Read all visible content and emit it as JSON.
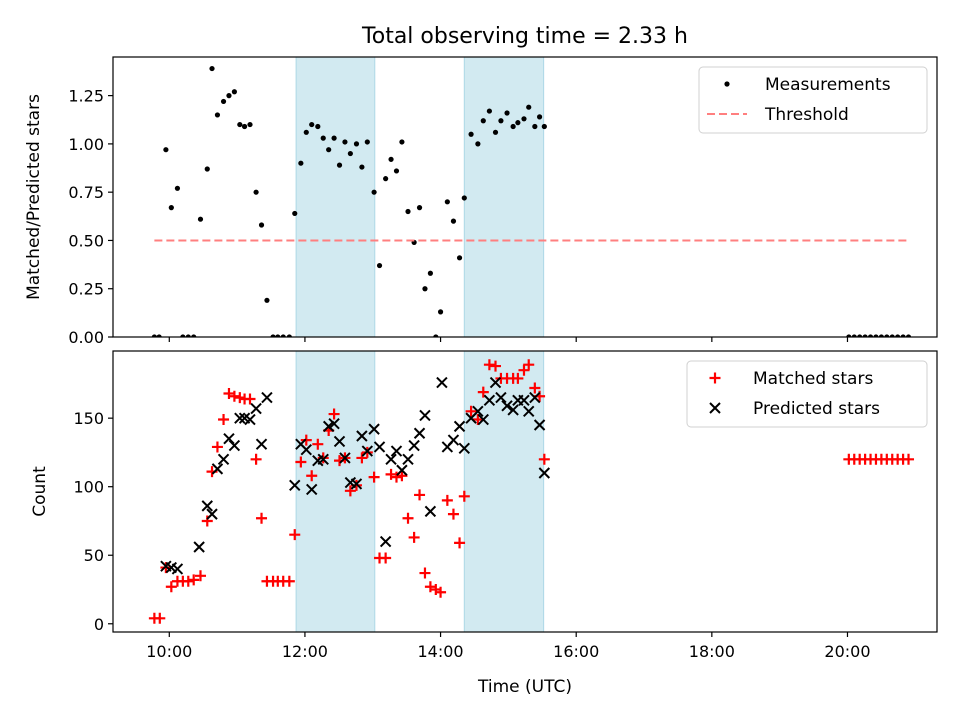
{
  "chart_data": {
    "title": "Total observing time = 2.33 h",
    "type": "scatter",
    "shaded_intervals": [
      [
        11.87,
        13.03
      ],
      [
        14.35,
        15.52
      ]
    ],
    "shade_color": "#add8e6",
    "xlabel": "Time (UTC)",
    "xlim": [
      9.17,
      21.32
    ],
    "xticks": [
      10,
      12,
      14,
      16,
      18,
      20
    ],
    "xtick_labels": [
      "10:00",
      "12:00",
      "14:00",
      "16:00",
      "18:00",
      "20:00"
    ],
    "grid": false,
    "panels": [
      {
        "ylabel": "Matched/Predicted stars",
        "ylim": [
          0,
          1.45
        ],
        "yticks": [
          0.0,
          0.25,
          0.5,
          0.75,
          1.0,
          1.25
        ],
        "ytick_labels": [
          "0.00",
          "0.25",
          "0.50",
          "0.75",
          "1.00",
          "1.25"
        ],
        "legend_position": "top-right",
        "series": [
          {
            "name": "Measurements",
            "kind": "dot",
            "color": "#000000",
            "points": [
              [
                9.78,
                0.0
              ],
              [
                9.85,
                0.0
              ],
              [
                9.95,
                0.97
              ],
              [
                10.03,
                0.67
              ],
              [
                10.12,
                0.77
              ],
              [
                10.2,
                0.0
              ],
              [
                10.28,
                0.0
              ],
              [
                10.36,
                0.0
              ],
              [
                10.46,
                0.61
              ],
              [
                10.56,
                0.87
              ],
              [
                10.63,
                1.39
              ],
              [
                10.71,
                1.15
              ],
              [
                10.8,
                1.22
              ],
              [
                10.88,
                1.25
              ],
              [
                10.96,
                1.27
              ],
              [
                11.04,
                1.1
              ],
              [
                11.11,
                1.09
              ],
              [
                11.19,
                1.1
              ],
              [
                11.28,
                0.75
              ],
              [
                11.36,
                0.58
              ],
              [
                11.44,
                0.19
              ],
              [
                11.53,
                0.0
              ],
              [
                11.6,
                0.0
              ],
              [
                11.68,
                0.0
              ],
              [
                11.77,
                0.0
              ],
              [
                11.85,
                0.64
              ],
              [
                11.94,
                0.9
              ],
              [
                12.02,
                1.06
              ],
              [
                12.1,
                1.1
              ],
              [
                12.19,
                1.09
              ],
              [
                12.27,
                1.03
              ],
              [
                12.35,
                0.97
              ],
              [
                12.43,
                1.03
              ],
              [
                12.51,
                0.89
              ],
              [
                12.59,
                1.01
              ],
              [
                12.67,
                0.95
              ],
              [
                12.76,
                1.0
              ],
              [
                12.84,
                0.88
              ],
              [
                12.92,
                1.01
              ],
              [
                13.02,
                0.75
              ],
              [
                13.1,
                0.37
              ],
              [
                13.19,
                0.82
              ],
              [
                13.27,
                0.92
              ],
              [
                13.35,
                0.86
              ],
              [
                13.43,
                1.01
              ],
              [
                13.52,
                0.65
              ],
              [
                13.61,
                0.49
              ],
              [
                13.69,
                0.67
              ],
              [
                13.77,
                0.25
              ],
              [
                13.85,
                0.33
              ],
              [
                13.93,
                0.0
              ],
              [
                14.0,
                0.13
              ],
              [
                14.1,
                0.7
              ],
              [
                14.19,
                0.6
              ],
              [
                14.28,
                0.41
              ],
              [
                14.35,
                0.72
              ],
              [
                14.45,
                1.05
              ],
              [
                14.55,
                1.0
              ],
              [
                14.63,
                1.12
              ],
              [
                14.72,
                1.17
              ],
              [
                14.81,
                1.06
              ],
              [
                14.89,
                1.12
              ],
              [
                14.98,
                1.16
              ],
              [
                15.07,
                1.09
              ],
              [
                15.14,
                1.11
              ],
              [
                15.23,
                1.13
              ],
              [
                15.3,
                1.19
              ],
              [
                15.39,
                1.09
              ],
              [
                15.46,
                1.14
              ],
              [
                15.53,
                1.09
              ],
              [
                20.02,
                0.0
              ],
              [
                20.1,
                0.0
              ],
              [
                20.18,
                0.0
              ],
              [
                20.26,
                0.0
              ],
              [
                20.34,
                0.0
              ],
              [
                20.42,
                0.0
              ],
              [
                20.5,
                0.0
              ],
              [
                20.58,
                0.0
              ],
              [
                20.66,
                0.0
              ],
              [
                20.74,
                0.0
              ],
              [
                20.82,
                0.0
              ],
              [
                20.9,
                0.0
              ]
            ]
          },
          {
            "name": "Threshold",
            "kind": "dashed-line",
            "color": "#ff7f7f",
            "points": [
              [
                9.78,
                0.5
              ],
              [
                20.9,
                0.5
              ]
            ]
          }
        ]
      },
      {
        "ylabel": "Count",
        "ylim": [
          -6,
          199
        ],
        "yticks": [
          0,
          50,
          100,
          150
        ],
        "ytick_labels": [
          "0",
          "50",
          "100",
          "150"
        ],
        "legend_position": "top-right",
        "series": [
          {
            "name": "Matched stars",
            "kind": "plus",
            "color": "#ff0000",
            "points": [
              [
                9.78,
                4
              ],
              [
                9.86,
                4
              ],
              [
                9.95,
                41
              ],
              [
                10.03,
                27
              ],
              [
                10.12,
                31
              ],
              [
                10.2,
                31
              ],
              [
                10.28,
                31
              ],
              [
                10.36,
                32
              ],
              [
                10.46,
                35
              ],
              [
                10.56,
                75
              ],
              [
                10.63,
                111
              ],
              [
                10.71,
                129
              ],
              [
                10.8,
                149
              ],
              [
                10.88,
                168
              ],
              [
                10.96,
                166
              ],
              [
                11.04,
                165
              ],
              [
                11.11,
                164
              ],
              [
                11.19,
                164
              ],
              [
                11.28,
                120
              ],
              [
                11.36,
                77
              ],
              [
                11.44,
                31
              ],
              [
                11.53,
                31
              ],
              [
                11.6,
                31
              ],
              [
                11.68,
                31
              ],
              [
                11.77,
                31
              ],
              [
                11.85,
                65
              ],
              [
                11.94,
                118
              ],
              [
                12.02,
                134
              ],
              [
                12.1,
                108
              ],
              [
                12.19,
                131
              ],
              [
                12.27,
                121
              ],
              [
                12.35,
                141
              ],
              [
                12.43,
                153
              ],
              [
                12.51,
                119
              ],
              [
                12.59,
                121
              ],
              [
                12.67,
                97
              ],
              [
                12.76,
                101
              ],
              [
                12.84,
                121
              ],
              [
                12.92,
                125
              ],
              [
                13.02,
                107
              ],
              [
                13.1,
                48
              ],
              [
                13.19,
                48
              ],
              [
                13.27,
                109
              ],
              [
                13.35,
                107
              ],
              [
                13.43,
                108
              ],
              [
                13.52,
                77
              ],
              [
                13.61,
                63
              ],
              [
                13.69,
                94
              ],
              [
                13.77,
                37
              ],
              [
                13.85,
                27
              ],
              [
                13.93,
                25
              ],
              [
                14.0,
                23
              ],
              [
                14.1,
                90
              ],
              [
                14.19,
                80
              ],
              [
                14.28,
                59
              ],
              [
                14.35,
                93
              ],
              [
                14.45,
                155
              ],
              [
                14.55,
                149
              ],
              [
                14.63,
                169
              ],
              [
                14.72,
                189
              ],
              [
                14.81,
                188
              ],
              [
                14.89,
                179
              ],
              [
                14.98,
                179
              ],
              [
                15.07,
                179
              ],
              [
                15.14,
                179
              ],
              [
                15.23,
                185
              ],
              [
                15.3,
                189
              ],
              [
                15.39,
                172
              ],
              [
                15.46,
                166
              ],
              [
                15.53,
                120
              ],
              [
                20.02,
                120
              ],
              [
                20.1,
                120
              ],
              [
                20.18,
                120
              ],
              [
                20.26,
                120
              ],
              [
                20.34,
                120
              ],
              [
                20.42,
                120
              ],
              [
                20.5,
                120
              ],
              [
                20.58,
                120
              ],
              [
                20.66,
                120
              ],
              [
                20.74,
                120
              ],
              [
                20.82,
                120
              ],
              [
                20.9,
                120
              ]
            ]
          },
          {
            "name": "Predicted stars",
            "kind": "cross",
            "color": "#000000",
            "points": [
              [
                9.95,
                42
              ],
              [
                10.03,
                41
              ],
              [
                10.12,
                40
              ],
              [
                10.44,
                56
              ],
              [
                10.56,
                86
              ],
              [
                10.63,
                80
              ],
              [
                10.71,
                113
              ],
              [
                10.8,
                120
              ],
              [
                10.88,
                135
              ],
              [
                10.96,
                130
              ],
              [
                11.04,
                150
              ],
              [
                11.11,
                150
              ],
              [
                11.19,
                149
              ],
              [
                11.28,
                157
              ],
              [
                11.36,
                131
              ],
              [
                11.44,
                165
              ],
              [
                11.85,
                101
              ],
              [
                11.94,
                131
              ],
              [
                12.02,
                127
              ],
              [
                12.1,
                98
              ],
              [
                12.19,
                119
              ],
              [
                12.27,
                120
              ],
              [
                12.35,
                144
              ],
              [
                12.43,
                146
              ],
              [
                12.51,
                133
              ],
              [
                12.59,
                121
              ],
              [
                12.67,
                103
              ],
              [
                12.76,
                102
              ],
              [
                12.84,
                137
              ],
              [
                12.92,
                126
              ],
              [
                13.02,
                142
              ],
              [
                13.1,
                129
              ],
              [
                13.19,
                60
              ],
              [
                13.27,
                120
              ],
              [
                13.35,
                126
              ],
              [
                13.43,
                112
              ],
              [
                13.52,
                120
              ],
              [
                13.61,
                130
              ],
              [
                13.69,
                139
              ],
              [
                13.77,
                152
              ],
              [
                13.85,
                82
              ],
              [
                14.02,
                176
              ],
              [
                14.1,
                129
              ],
              [
                14.19,
                134
              ],
              [
                14.28,
                144
              ],
              [
                14.35,
                128
              ],
              [
                14.45,
                150
              ],
              [
                14.55,
                155
              ],
              [
                14.63,
                149
              ],
              [
                14.72,
                163
              ],
              [
                14.81,
                176
              ],
              [
                14.89,
                165
              ],
              [
                14.98,
                159
              ],
              [
                15.07,
                156
              ],
              [
                15.14,
                163
              ],
              [
                15.23,
                163
              ],
              [
                15.3,
                155
              ],
              [
                15.39,
                165
              ],
              [
                15.46,
                145
              ],
              [
                15.53,
                110
              ]
            ]
          }
        ]
      }
    ]
  }
}
